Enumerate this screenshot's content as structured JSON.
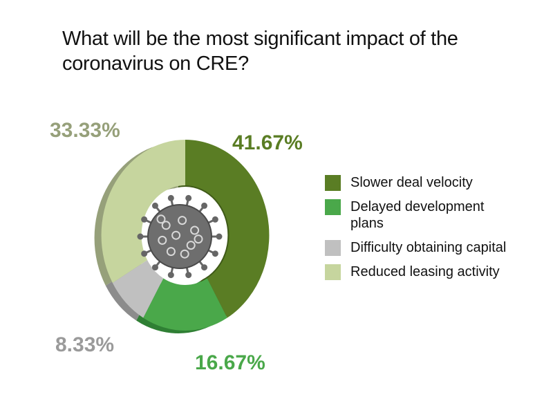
{
  "chart_data": {
    "type": "pie",
    "title": "What will be the most significant impact of the coronavirus on CRE?",
    "categories": [
      "Slower deal velocity",
      "Delayed development plans",
      "Difficulty obtaining capital",
      "Reduced leasing activity"
    ],
    "values": [
      41.67,
      16.67,
      8.33,
      33.33
    ],
    "value_labels": [
      "41.67%",
      "16.67%",
      "8.33%",
      "33.33%"
    ],
    "colors": [
      "#5a7d24",
      "#4aa84a",
      "#c0c0c0",
      "#c6d59e"
    ],
    "side_colors": [
      "#3f5a18",
      "#2f7f34",
      "#8c8c8c",
      "#96a07a"
    ],
    "label_colors": [
      "#5a7d24",
      "#4aa84a",
      "#9a9a9a",
      "#96a07a"
    ],
    "legend_position": "right",
    "center_icon": "coronavirus-icon"
  }
}
